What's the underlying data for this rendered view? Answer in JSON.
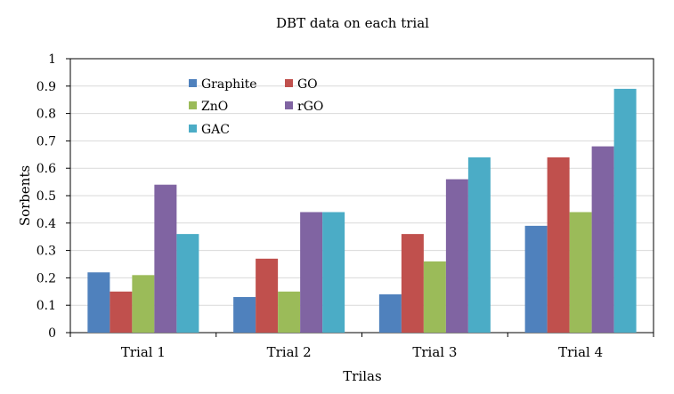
{
  "chart_data": {
    "type": "bar",
    "title": "DBT data on each trial",
    "xlabel": "Trilas",
    "ylabel": "Sorbents",
    "categories": [
      "Trial 1",
      "Trial 2",
      "Trial 3",
      "Trial 4"
    ],
    "ylim": [
      0,
      1
    ],
    "yticks": [
      "0",
      "0.1",
      "0.2",
      "0.3",
      "0.4",
      "0.5",
      "0.6",
      "0.7",
      "0.8",
      "0.9",
      "1"
    ],
    "grid": true,
    "legend_position": "top-left inside plot",
    "series": [
      {
        "name": "Graphite",
        "color": "#4F81BD",
        "values": [
          0.22,
          0.13,
          0.14,
          0.39
        ]
      },
      {
        "name": "GO",
        "color": "#C0504D",
        "values": [
          0.15,
          0.27,
          0.36,
          0.64
        ]
      },
      {
        "name": "ZnO",
        "color": "#9BBB59",
        "values": [
          0.21,
          0.15,
          0.26,
          0.44
        ]
      },
      {
        "name": "rGO",
        "color": "#8064A2",
        "values": [
          0.54,
          0.44,
          0.56,
          0.68
        ]
      },
      {
        "name": "GAC",
        "color": "#4BACC6",
        "values": [
          0.36,
          0.44,
          0.64,
          0.89
        ]
      }
    ]
  }
}
